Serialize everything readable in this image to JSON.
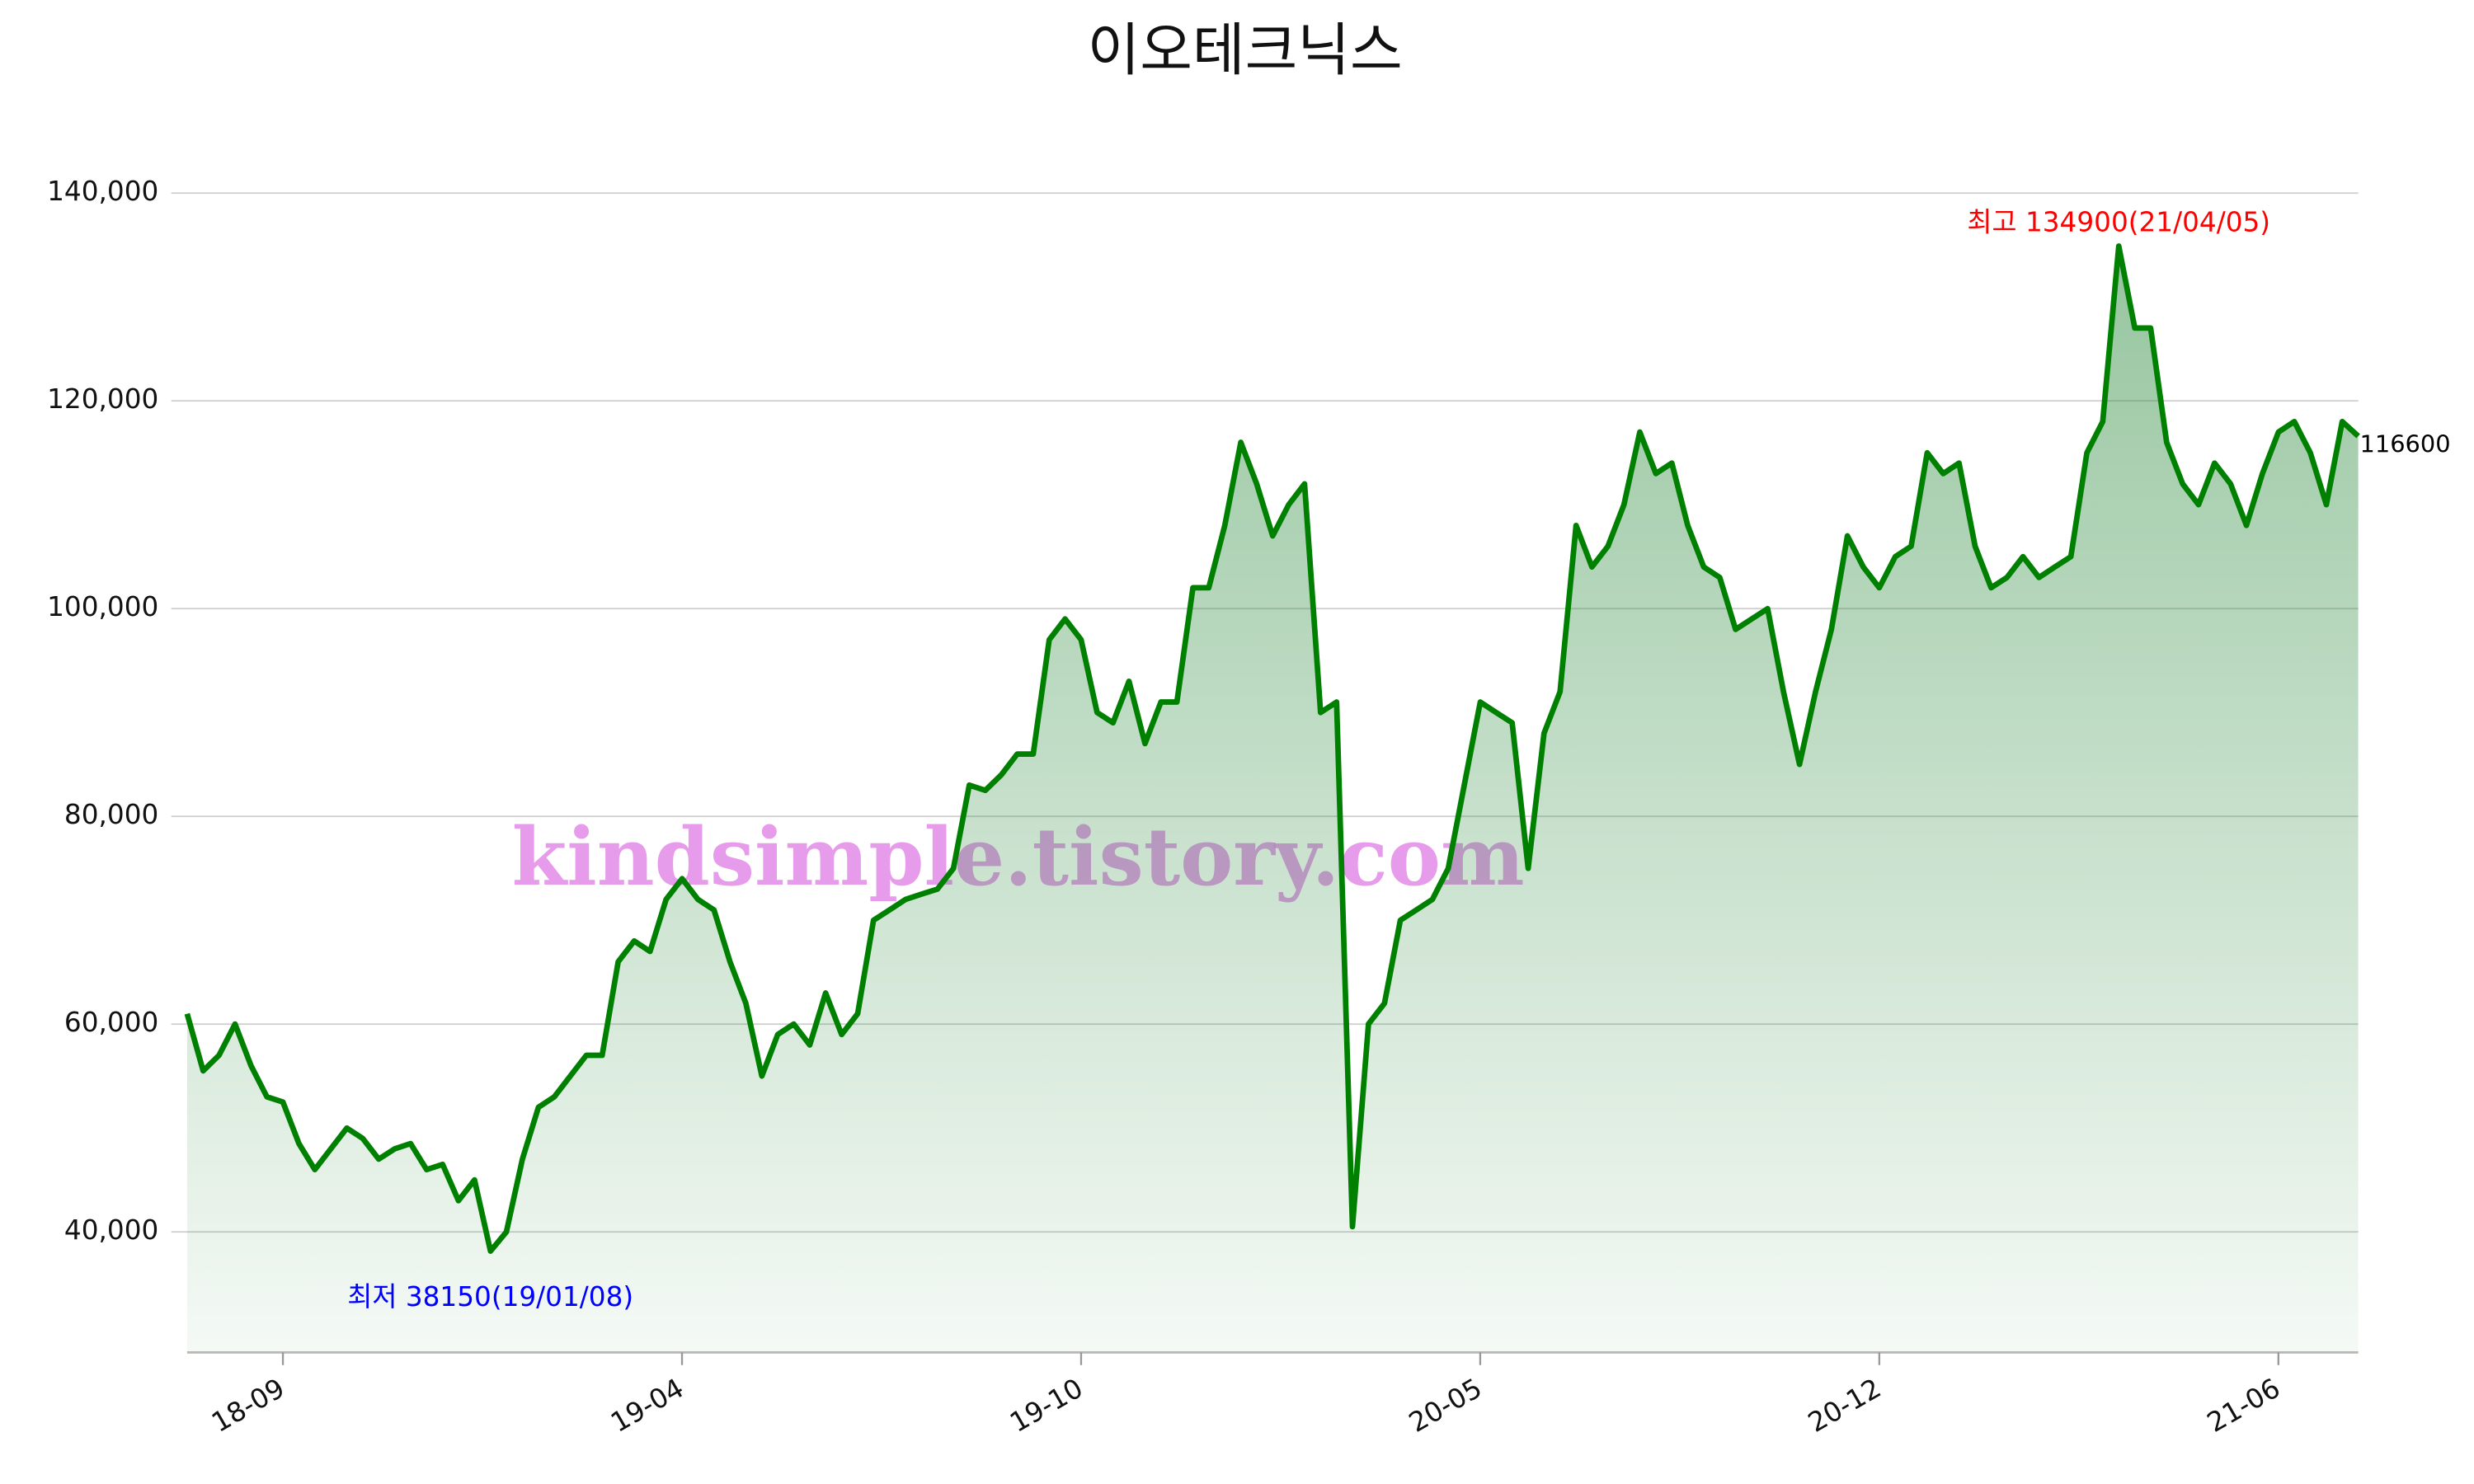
{
  "chart_data": {
    "type": "area-line",
    "title": "이오테크닉스",
    "watermark": "kindsimple.tistory.com",
    "categories": [
      null,
      null,
      null,
      null,
      null,
      null,
      "18-09",
      null,
      null,
      null,
      null,
      null,
      null,
      null,
      null,
      null,
      null,
      null,
      null,
      null,
      null,
      null,
      null,
      null,
      null,
      null,
      null,
      null,
      null,
      null,
      null,
      "19-04",
      null,
      null,
      null,
      null,
      null,
      null,
      null,
      null,
      null,
      null,
      null,
      null,
      null,
      null,
      null,
      null,
      null,
      null,
      null,
      null,
      null,
      null,
      null,
      null,
      "19-10",
      null,
      null,
      null,
      null,
      null,
      null,
      null,
      null,
      null,
      null,
      null,
      null,
      null,
      null,
      null,
      null,
      null,
      null,
      null,
      null,
      null,
      null,
      null,
      null,
      "20-05",
      null,
      null,
      null,
      null,
      null,
      null,
      null,
      null,
      null,
      null,
      null,
      null,
      null,
      null,
      null,
      null,
      null,
      null,
      null,
      null,
      null,
      null,
      null,
      null,
      "20-12",
      null,
      null,
      null,
      null,
      null,
      null,
      null,
      null,
      null,
      null,
      null,
      null,
      null,
      null,
      null,
      null,
      null,
      null,
      null,
      null,
      null,
      null,
      null,
      null,
      "21-06",
      null,
      null,
      null,
      null,
      null
    ],
    "series": [
      {
        "name": "이오테크닉스",
        "color": "#008000",
        "values": [
          61000,
          55500,
          57000,
          60000,
          56000,
          53000,
          52500,
          48500,
          46000,
          48000,
          50000,
          49000,
          47000,
          48000,
          48500,
          46000,
          46500,
          43000,
          45000,
          38150,
          40000,
          47000,
          52000,
          53000,
          55000,
          57000,
          57000,
          66000,
          68000,
          67000,
          72000,
          74000,
          72000,
          71000,
          66000,
          62000,
          55000,
          59000,
          60000,
          58000,
          63000,
          59000,
          61000,
          70000,
          71000,
          72000,
          72500,
          73000,
          75000,
          83000,
          82500,
          84000,
          86000,
          86000,
          97000,
          99000,
          97000,
          90000,
          89000,
          93000,
          87000,
          91000,
          91000,
          102000,
          102000,
          108000,
          116000,
          112000,
          107000,
          110000,
          112000,
          90000,
          91000,
          40500,
          60000,
          62000,
          70000,
          71000,
          72000,
          75000,
          83000,
          91000,
          90000,
          89000,
          75000,
          88000,
          92000,
          108000,
          104000,
          106000,
          110000,
          117000,
          113000,
          114000,
          108000,
          104000,
          103000,
          98000,
          99000,
          100000,
          92000,
          85000,
          92000,
          98000,
          107000,
          104000,
          102000,
          105000,
          106000,
          115000,
          113000,
          114000,
          106000,
          102000,
          103000,
          105000,
          103000,
          104000,
          105000,
          115000,
          118000,
          134900,
          127000,
          127000,
          116000,
          112000,
          110000,
          114000,
          112000,
          108000,
          113000,
          117000,
          118000,
          115000,
          110000,
          118000,
          116600
        ]
      }
    ],
    "annotations": [
      {
        "text": "최고 134900(21/04/05)",
        "color": "#ff0000"
      },
      {
        "text": "최저 38150(19/01/08)",
        "color": "#0000ff"
      },
      {
        "text": "116600",
        "color": "#000000"
      }
    ],
    "ylim": [
      28400,
      145000
    ],
    "yticks": [
      {
        "value": 40000,
        "label": "40,000"
      },
      {
        "value": 60000,
        "label": "60,000"
      },
      {
        "value": 80000,
        "label": "80,000"
      },
      {
        "value": 100000,
        "label": "100,000"
      },
      {
        "value": 120000,
        "label": "120,000"
      },
      {
        "value": 140000,
        "label": "140,000"
      }
    ],
    "grid": true
  }
}
